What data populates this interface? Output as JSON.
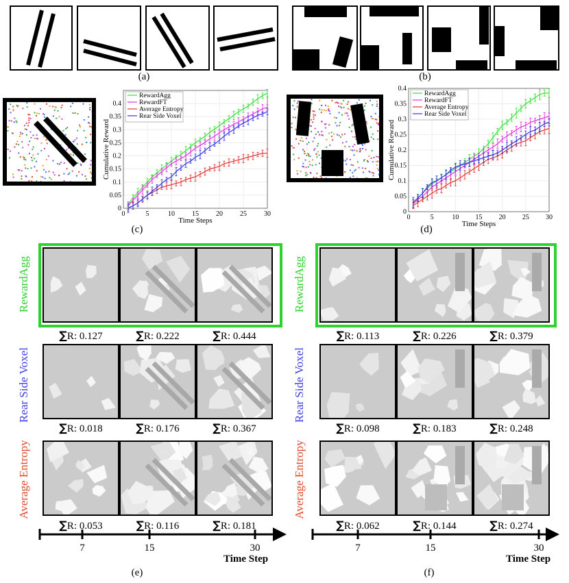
{
  "labels": {
    "a": "(a)",
    "b": "(b)",
    "c": "(c)",
    "d": "(d)",
    "e": "(e)",
    "f": "(f)"
  },
  "rows": {
    "reward_agg": "RewardAgg",
    "rear_side_voxel": "Rear Side Voxel",
    "average_entropy": "Average Entropy"
  },
  "colors": {
    "reward_agg": "#2fd12f",
    "rear_side_voxel": "#3f3fe0",
    "average_entropy": "#e04a2e"
  },
  "sigma": "∑",
  "scores": {
    "e": {
      "reward_agg": [
        "R: 0.127",
        "R: 0.222",
        "R: 0.444"
      ],
      "rear_side_voxel": [
        "R: 0.018",
        "R: 0.176",
        "R: 0.367"
      ],
      "average_entropy": [
        "R: 0.053",
        "R: 0.116",
        "R: 0.181"
      ]
    },
    "f": {
      "reward_agg": [
        "R: 0.113",
        "R: 0.226",
        "R: 0.379"
      ],
      "rear_side_voxel": [
        "R: 0.098",
        "R: 0.183",
        "R: 0.248"
      ],
      "average_entropy": [
        "R: 0.062",
        "R: 0.144",
        "R: 0.274"
      ]
    }
  },
  "timeline": {
    "ticks": [
      "7",
      "15",
      "30"
    ],
    "label": "Time Step"
  },
  "chart_data": [
    {
      "id": "c",
      "type": "line",
      "xlabel": "Time Steps",
      "ylabel": "Cumulative Reward",
      "xlim": [
        0,
        30
      ],
      "ylim": [
        0,
        0.45
      ],
      "xticks": [
        0,
        5,
        10,
        15,
        20,
        25,
        30
      ],
      "yticks": [
        0,
        0.05,
        0.1,
        0.15,
        0.2,
        0.25,
        0.3,
        0.35,
        0.4
      ],
      "legend_position": "top-left",
      "x": [
        1,
        2,
        3,
        4,
        5,
        6,
        7,
        8,
        9,
        10,
        11,
        12,
        13,
        14,
        15,
        16,
        17,
        18,
        19,
        20,
        21,
        22,
        23,
        24,
        25,
        26,
        27,
        28,
        29,
        30
      ],
      "series": [
        {
          "name": "RewardAgg",
          "color": "#33e033",
          "values": [
            0.015,
            0.04,
            0.06,
            0.08,
            0.1,
            0.12,
            0.135,
            0.15,
            0.165,
            0.18,
            0.195,
            0.205,
            0.22,
            0.235,
            0.25,
            0.262,
            0.275,
            0.29,
            0.302,
            0.315,
            0.33,
            0.342,
            0.355,
            0.368,
            0.38,
            0.39,
            0.405,
            0.418,
            0.43,
            0.44
          ]
        },
        {
          "name": "RewardFT",
          "color": "#e033e0",
          "values": [
            0.01,
            0.03,
            0.05,
            0.07,
            0.09,
            0.11,
            0.125,
            0.14,
            0.155,
            0.17,
            0.18,
            0.19,
            0.2,
            0.215,
            0.23,
            0.24,
            0.252,
            0.265,
            0.275,
            0.288,
            0.3,
            0.31,
            0.32,
            0.33,
            0.34,
            0.35,
            0.36,
            0.37,
            0.38,
            0.385
          ]
        },
        {
          "name": "Average Entropy",
          "color": "#e03333",
          "values": [
            0.0,
            0.01,
            0.02,
            0.035,
            0.05,
            0.06,
            0.07,
            0.08,
            0.085,
            0.09,
            0.095,
            0.1,
            0.11,
            0.115,
            0.12,
            0.13,
            0.14,
            0.15,
            0.155,
            0.16,
            0.17,
            0.175,
            0.18,
            0.185,
            0.19,
            0.195,
            0.2,
            0.205,
            0.21,
            0.21
          ]
        },
        {
          "name": "Rear Side Voxel",
          "color": "#3333e0",
          "values": [
            0.0,
            0.01,
            0.02,
            0.035,
            0.05,
            0.065,
            0.08,
            0.095,
            0.11,
            0.12,
            0.14,
            0.155,
            0.17,
            0.18,
            0.195,
            0.205,
            0.22,
            0.235,
            0.245,
            0.26,
            0.275,
            0.29,
            0.3,
            0.315,
            0.325,
            0.335,
            0.345,
            0.355,
            0.36,
            0.37
          ]
        }
      ]
    },
    {
      "id": "d",
      "type": "line",
      "xlabel": "Time Steps",
      "ylabel": "Cumulative Reward",
      "xlim": [
        0,
        30
      ],
      "ylim": [
        0,
        0.4
      ],
      "xticks": [
        0,
        5,
        10,
        15,
        20,
        25,
        30
      ],
      "yticks": [
        0,
        0.05,
        0.1,
        0.15,
        0.2,
        0.25,
        0.3,
        0.35,
        0.4
      ],
      "legend_position": "top-left",
      "x": [
        1,
        2,
        3,
        4,
        5,
        6,
        7,
        8,
        9,
        10,
        11,
        12,
        13,
        14,
        15,
        16,
        17,
        18,
        19,
        20,
        21,
        22,
        23,
        24,
        25,
        26,
        27,
        28,
        29,
        30
      ],
      "series": [
        {
          "name": "RewardAgg",
          "color": "#33e033",
          "values": [
            0.03,
            0.045,
            0.06,
            0.075,
            0.09,
            0.1,
            0.11,
            0.12,
            0.13,
            0.14,
            0.15,
            0.16,
            0.17,
            0.18,
            0.19,
            0.205,
            0.22,
            0.24,
            0.26,
            0.28,
            0.29,
            0.305,
            0.32,
            0.335,
            0.35,
            0.36,
            0.37,
            0.38,
            0.385,
            0.385
          ]
        },
        {
          "name": "RewardFT",
          "color": "#e033e0",
          "values": [
            0.025,
            0.04,
            0.05,
            0.065,
            0.08,
            0.09,
            0.1,
            0.11,
            0.12,
            0.13,
            0.14,
            0.15,
            0.16,
            0.17,
            0.18,
            0.19,
            0.2,
            0.21,
            0.22,
            0.235,
            0.245,
            0.255,
            0.265,
            0.275,
            0.28,
            0.29,
            0.295,
            0.3,
            0.305,
            0.31
          ]
        },
        {
          "name": "Average Entropy",
          "color": "#e03333",
          "values": [
            0.02,
            0.03,
            0.04,
            0.05,
            0.06,
            0.07,
            0.075,
            0.085,
            0.095,
            0.1,
            0.11,
            0.12,
            0.13,
            0.14,
            0.15,
            0.16,
            0.17,
            0.175,
            0.18,
            0.19,
            0.2,
            0.21,
            0.22,
            0.225,
            0.23,
            0.24,
            0.25,
            0.26,
            0.265,
            0.27
          ]
        },
        {
          "name": "Rear Side Voxel",
          "color": "#3333e0",
          "values": [
            0.03,
            0.045,
            0.06,
            0.08,
            0.095,
            0.1,
            0.11,
            0.12,
            0.135,
            0.145,
            0.15,
            0.155,
            0.16,
            0.165,
            0.17,
            0.175,
            0.18,
            0.185,
            0.19,
            0.2,
            0.21,
            0.22,
            0.23,
            0.24,
            0.25,
            0.26,
            0.265,
            0.275,
            0.285,
            0.29
          ]
        }
      ]
    }
  ]
}
